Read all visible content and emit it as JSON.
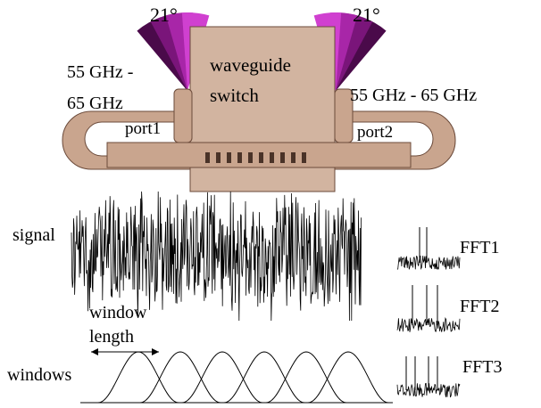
{
  "device": {
    "angle_left": "21°",
    "angle_right": "21°",
    "freq_left": [
      "55 GHz -",
      "65 GHz"
    ],
    "freq_right": "55 GHz - 65 GHz",
    "switch": [
      "waveguide",
      "switch"
    ],
    "port1": "port1",
    "port2": "port2"
  },
  "signal": {
    "label": "signal",
    "window_length": [
      "window",
      "length"
    ],
    "windows": "windows"
  },
  "fft": [
    "FFT1",
    "FFT2",
    "FFT3"
  ]
}
